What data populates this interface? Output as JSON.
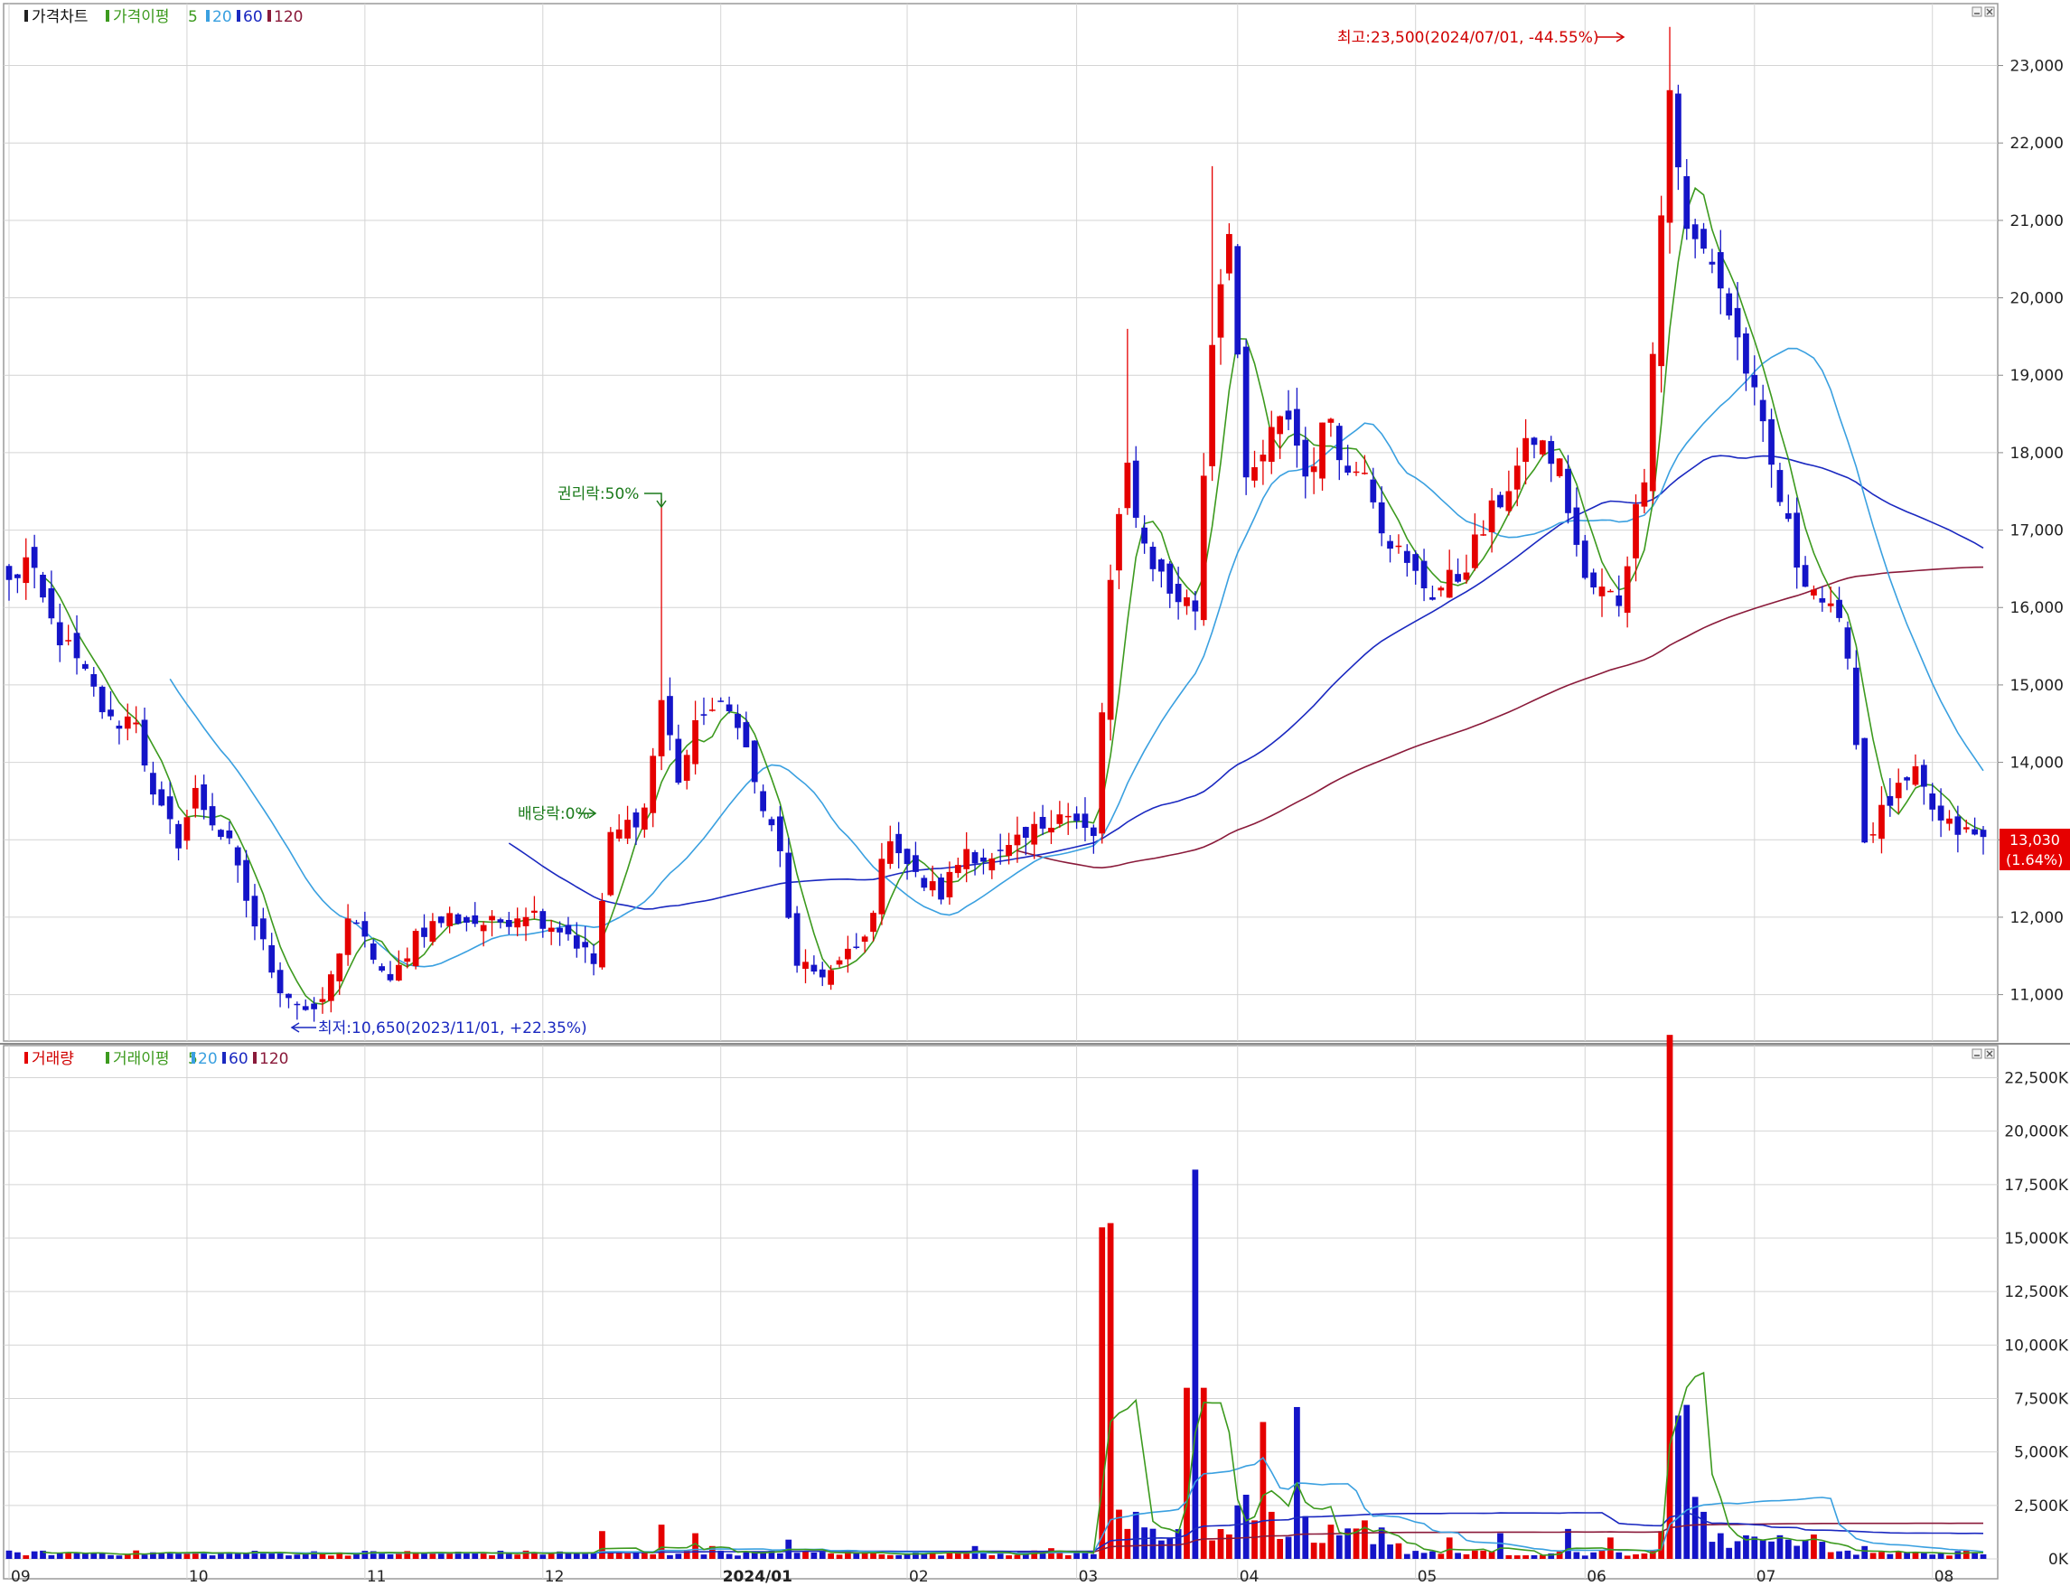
{
  "colors": {
    "up": "#e50000",
    "down": "#1414c8",
    "ma5": "#3c9a1e",
    "ma20": "#3aa0e0",
    "ma60": "#1a28c0",
    "ma120": "#8a1a3a",
    "grid": "#d4d4d4",
    "annot_red": "#d00000",
    "annot_green": "#1a7a1a",
    "annot_blue": "#1a28c0"
  },
  "price_panel": {
    "legend": {
      "title": "가격차트",
      "ma_label": "가격이평",
      "p5": "5",
      "p20": "20",
      "p60": "60",
      "p120": "120"
    },
    "current_price": "13,030",
    "current_change": "(1.64%)",
    "high_note": "최고:23,500(2024/07/01, -44.55%)",
    "low_note": "최저:10,650(2023/11/01, +22.35%)",
    "rights_note": "권리락:50%",
    "dividend_note": "배당락:0%"
  },
  "volume_panel": {
    "legend": {
      "title": "거래량",
      "ma_label": "거래이평",
      "p5": "5",
      "p20": "20",
      "p60": "60",
      "p120": "120"
    }
  },
  "chart_data": [
    {
      "type": "candlestick",
      "ylim": [
        10400,
        23800
      ],
      "yticks": [
        11000,
        12000,
        13000,
        14000,
        15000,
        16000,
        17000,
        18000,
        19000,
        20000,
        21000,
        22000,
        23000
      ],
      "ytick_labels": [
        "11,000",
        "12,000",
        "13,000",
        "14,000",
        "15,000",
        "16,000",
        "17,000",
        "18,000",
        "19,000",
        "20,000",
        "21,000",
        "22,000",
        "23,000"
      ],
      "x_tick_labels": [
        "09",
        "10",
        "11",
        "12",
        "2024/01",
        "02",
        "03",
        "04",
        "05",
        "06",
        "07",
        "08"
      ],
      "x_tick_index": [
        0,
        21,
        42,
        63,
        84,
        106,
        126,
        145,
        166,
        186,
        206,
        227
      ],
      "keypoints": [
        [
          0,
          16300
        ],
        [
          2,
          16600
        ],
        [
          5,
          15800
        ],
        [
          9,
          15100
        ],
        [
          12,
          14500
        ],
        [
          15,
          14600
        ],
        [
          17,
          13500
        ],
        [
          20,
          13000
        ],
        [
          22,
          13600
        ],
        [
          26,
          12900
        ],
        [
          29,
          11900
        ],
        [
          32,
          11100
        ],
        [
          35,
          10800
        ],
        [
          36,
          10700
        ],
        [
          38,
          11200
        ],
        [
          40,
          12000
        ],
        [
          43,
          11500
        ],
        [
          45,
          11100
        ],
        [
          48,
          11800
        ],
        [
          52,
          12000
        ],
        [
          57,
          11900
        ],
        [
          61,
          12100
        ],
        [
          66,
          11800
        ],
        [
          69,
          11400
        ],
        [
          71,
          13000
        ],
        [
          75,
          13400
        ],
        [
          77,
          14800
        ],
        [
          79,
          13800
        ],
        [
          82,
          14700
        ],
        [
          86,
          14600
        ],
        [
          88,
          13700
        ],
        [
          91,
          12800
        ],
        [
          93,
          11300
        ],
        [
          97,
          11300
        ],
        [
          101,
          11700
        ],
        [
          104,
          13100
        ],
        [
          107,
          12500
        ],
        [
          110,
          12300
        ],
        [
          113,
          12900
        ],
        [
          116,
          12700
        ],
        [
          120,
          13000
        ],
        [
          124,
          13400
        ],
        [
          128,
          13000
        ],
        [
          130,
          16300
        ],
        [
          132,
          17800
        ],
        [
          134,
          16800
        ],
        [
          137,
          16200
        ],
        [
          140,
          16000
        ],
        [
          142,
          19500
        ],
        [
          144,
          21000
        ],
        [
          146,
          17500
        ],
        [
          149,
          18200
        ],
        [
          151,
          18500
        ],
        [
          153,
          17700
        ],
        [
          156,
          18500
        ],
        [
          158,
          17700
        ],
        [
          160,
          17900
        ],
        [
          162,
          17100
        ],
        [
          165,
          16500
        ],
        [
          168,
          16200
        ],
        [
          171,
          16400
        ],
        [
          174,
          17000
        ],
        [
          177,
          17600
        ],
        [
          180,
          18200
        ],
        [
          183,
          17800
        ],
        [
          186,
          16300
        ],
        [
          190,
          16100
        ],
        [
          193,
          17800
        ],
        [
          196,
          22700
        ],
        [
          198,
          20800
        ],
        [
          201,
          20500
        ],
        [
          205,
          19100
        ],
        [
          208,
          17800
        ],
        [
          211,
          16600
        ],
        [
          214,
          16100
        ],
        [
          217,
          15500
        ],
        [
          219,
          13000
        ],
        [
          222,
          13500
        ],
        [
          225,
          13800
        ],
        [
          228,
          13200
        ],
        [
          233,
          13000
        ]
      ],
      "overlays": [
        "MA5",
        "MA20",
        "MA60",
        "MA120"
      ]
    },
    {
      "type": "bar",
      "ylim": [
        0,
        24000
      ],
      "yticks": [
        0,
        2500,
        5000,
        7500,
        10000,
        12500,
        15000,
        17500,
        20000,
        22500
      ],
      "ytick_labels": [
        "0K",
        "2,500K",
        "5,000K",
        "7,500K",
        "10,000K",
        "12,500K",
        "15,000K",
        "17,500K",
        "20,000K",
        "22,500K"
      ],
      "unit": "K",
      "spikes": [
        [
          70,
          1300
        ],
        [
          77,
          1600
        ],
        [
          81,
          1200
        ],
        [
          83,
          600
        ],
        [
          92,
          900
        ],
        [
          114,
          600
        ],
        [
          123,
          500
        ],
        [
          129,
          15500
        ],
        [
          130,
          15700
        ],
        [
          131,
          2300
        ],
        [
          132,
          1400
        ],
        [
          133,
          2200
        ],
        [
          139,
          8000
        ],
        [
          140,
          18200
        ],
        [
          141,
          8000
        ],
        [
          145,
          2500
        ],
        [
          146,
          3000
        ],
        [
          147,
          1800
        ],
        [
          148,
          6400
        ],
        [
          149,
          2200
        ],
        [
          152,
          7100
        ],
        [
          153,
          2000
        ],
        [
          156,
          1600
        ],
        [
          160,
          1800
        ],
        [
          170,
          1000
        ],
        [
          176,
          1200
        ],
        [
          184,
          1400
        ],
        [
          189,
          1000
        ],
        [
          195,
          1300
        ],
        [
          196,
          24500
        ],
        [
          197,
          6700
        ],
        [
          198,
          7200
        ],
        [
          199,
          2900
        ],
        [
          200,
          2200
        ],
        [
          202,
          1200
        ],
        [
          205,
          1100
        ],
        [
          210,
          900
        ],
        [
          214,
          800
        ],
        [
          219,
          600
        ]
      ],
      "overlays": [
        "MA5",
        "MA20",
        "MA60",
        "MA120"
      ]
    }
  ]
}
